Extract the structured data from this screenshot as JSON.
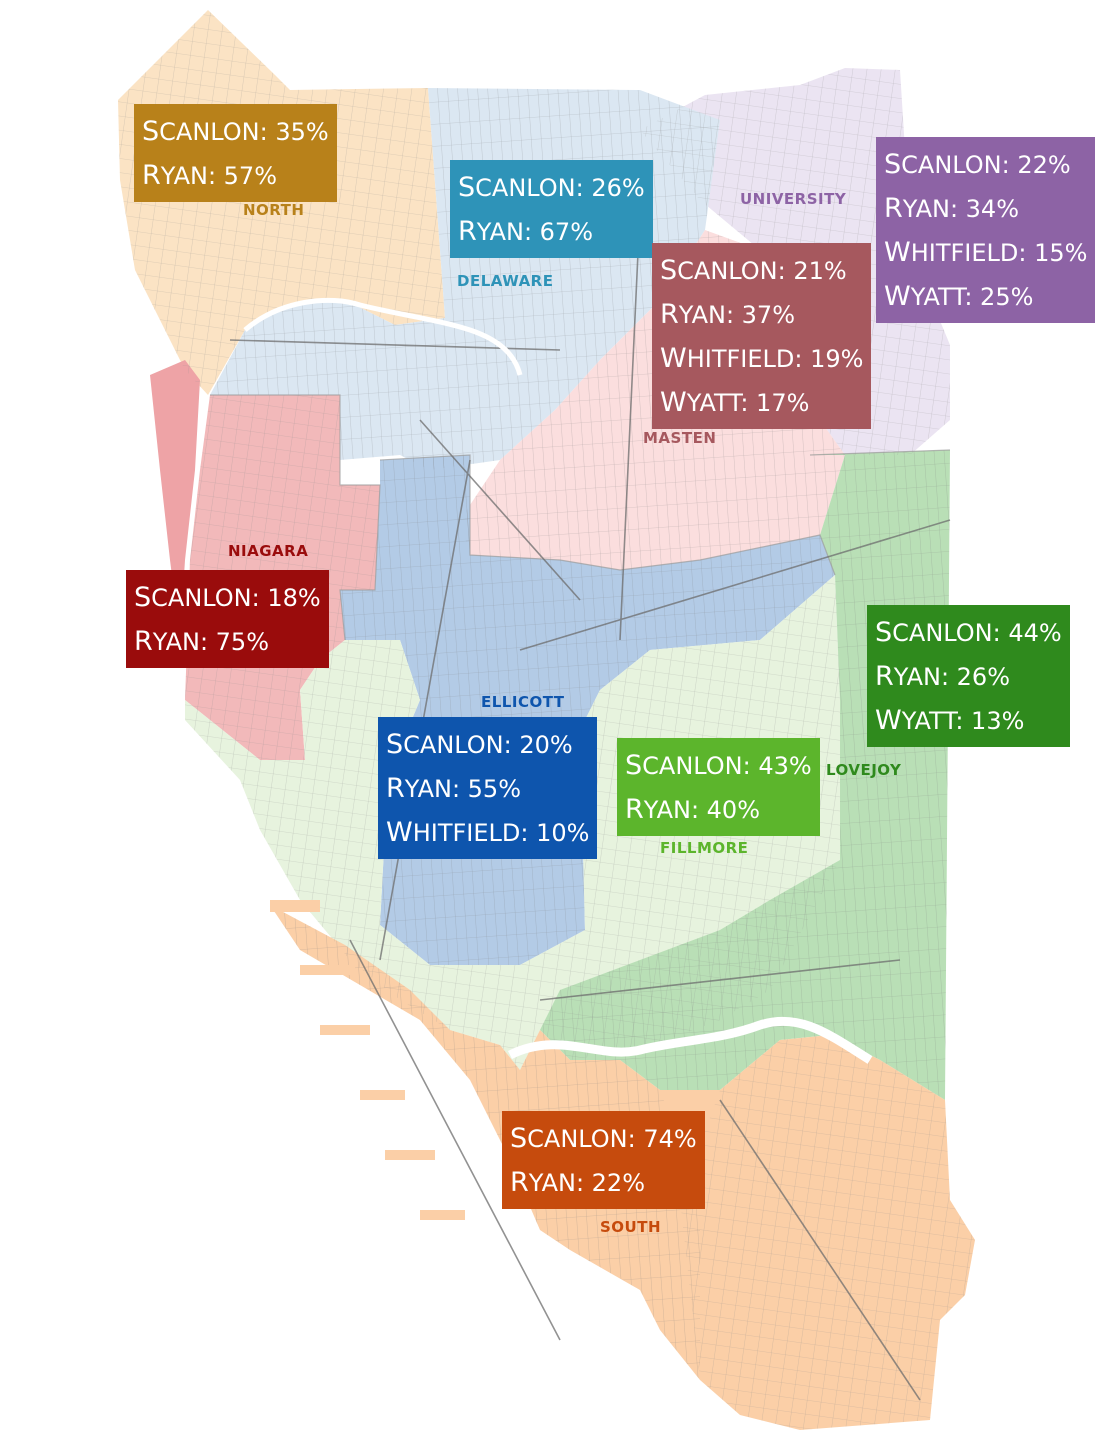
{
  "colors": {
    "north": "#b8811a",
    "delaware": "#2e93b8",
    "university": "#8d63a5",
    "masten": "#a6585e",
    "niagara": "#9a0c0c",
    "ellicott": "#0e55ad",
    "fillmore": "#5cb52c",
    "lovejoy": "#2f8a1d",
    "south": "#c64b0d"
  },
  "districts": [
    {
      "id": "north",
      "name": "NORTH",
      "results": [
        {
          "candidate": "Scanlon",
          "share": "35%"
        },
        {
          "candidate": "Ryan",
          "share": "57%"
        }
      ]
    },
    {
      "id": "delaware",
      "name": "DELAWARE",
      "results": [
        {
          "candidate": "Scanlon",
          "share": "26%"
        },
        {
          "candidate": "Ryan",
          "share": "67%"
        }
      ]
    },
    {
      "id": "university",
      "name": "UNIVERSITY",
      "results": [
        {
          "candidate": "Scanlon",
          "share": "22%"
        },
        {
          "candidate": "Ryan",
          "share": "34%"
        },
        {
          "candidate": "Whitfield",
          "share": "15%"
        },
        {
          "candidate": "Wyatt",
          "share": "25%"
        }
      ]
    },
    {
      "id": "masten",
      "name": "MASTEN",
      "results": [
        {
          "candidate": "Scanlon",
          "share": "21%"
        },
        {
          "candidate": "Ryan",
          "share": "37%"
        },
        {
          "candidate": "Whitfield",
          "share": "19%"
        },
        {
          "candidate": "Wyatt",
          "share": "17%"
        }
      ]
    },
    {
      "id": "niagara",
      "name": "NIAGARA",
      "results": [
        {
          "candidate": "Scanlon",
          "share": "18%"
        },
        {
          "candidate": "Ryan",
          "share": "75%"
        }
      ]
    },
    {
      "id": "ellicott",
      "name": "ELLICOTT",
      "results": [
        {
          "candidate": "Scanlon",
          "share": "20%"
        },
        {
          "candidate": "Ryan",
          "share": "55%"
        },
        {
          "candidate": "Whitfield",
          "share": "10%"
        }
      ]
    },
    {
      "id": "fillmore",
      "name": "FILLMORE",
      "results": [
        {
          "candidate": "Scanlon",
          "share": "43%"
        },
        {
          "candidate": "Ryan",
          "share": "40%"
        }
      ]
    },
    {
      "id": "lovejoy",
      "name": "LOVEJOY",
      "results": [
        {
          "candidate": "Scanlon",
          "share": "44%"
        },
        {
          "candidate": "Ryan",
          "share": "26%"
        },
        {
          "candidate": "Wyatt",
          "share": "13%"
        }
      ]
    },
    {
      "id": "south",
      "name": "SOUTH",
      "results": [
        {
          "candidate": "Scanlon",
          "share": "74%"
        },
        {
          "candidate": "Ryan",
          "share": "22%"
        }
      ]
    }
  ]
}
